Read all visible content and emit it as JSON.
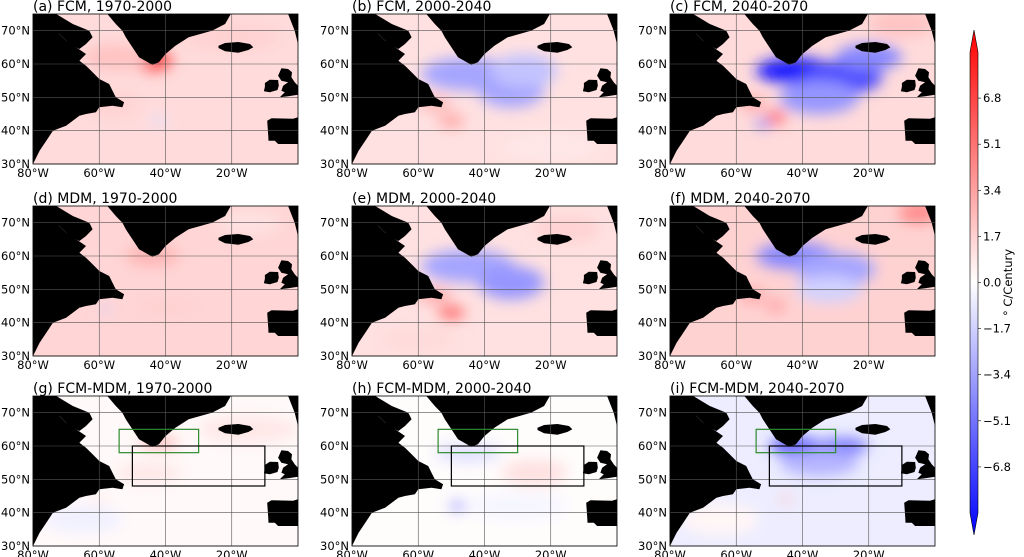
{
  "chart_data": {
    "type": "heatmap",
    "layout": "3x3 grid of maps",
    "colorbar": {
      "label": "$^\\circ$C/Century",
      "label_display": "° C/Century",
      "ticks": [
        6.8,
        5.1,
        3.4,
        1.7,
        0.0,
        -1.7,
        -3.4,
        -5.1,
        -6.8
      ],
      "tick_labels": [
        "6.8",
        "5.1",
        "3.4",
        "1.7",
        "0.0",
        "−1.7",
        "−3.4",
        "−5.1",
        "−6.8"
      ],
      "vmin": -8.5,
      "vmax": 8.5,
      "cmap": "bwr",
      "colors": {
        "low": "#0000ff",
        "mid": "#ffffff",
        "high": "#ff0000"
      },
      "extend": "both"
    },
    "xticks": [
      -80,
      -60,
      -40,
      -20
    ],
    "xtick_labels": [
      "80°W",
      "60°W",
      "40°W",
      "20°W"
    ],
    "yticks": [
      30,
      40,
      50,
      60,
      70
    ],
    "ytick_labels": [
      "30°N",
      "40°N",
      "50°N",
      "60°N",
      "70°N"
    ],
    "lon_range": [
      -80,
      0
    ],
    "lat_range": [
      30,
      75
    ],
    "land_color": "#000000",
    "grid": true,
    "boxes": [
      {
        "name": "green",
        "color": "#2e8b2e",
        "lon": [
          -54,
          -30
        ],
        "lat": [
          58,
          65
        ]
      },
      {
        "name": "black",
        "color": "#000000",
        "lon": [
          -50,
          -10
        ],
        "lat": [
          48,
          60
        ]
      }
    ],
    "panels": [
      {
        "title": "(a) FCM, 1970-2000",
        "base": 1.2,
        "boxes": false,
        "features": [
          {
            "lon": -44,
            "lat": 61,
            "rx": 6,
            "ry": 3,
            "v": 6
          },
          {
            "lon": -55,
            "lat": 62,
            "rx": 10,
            "ry": 4,
            "v": 2
          },
          {
            "lon": -20,
            "lat": 68,
            "rx": 15,
            "ry": 4,
            "v": 1.5
          },
          {
            "lon": -42,
            "lat": 43,
            "rx": 3,
            "ry": 1.2,
            "v": -1
          },
          {
            "lon": -56,
            "lat": 48,
            "rx": 8,
            "ry": 4,
            "v": 1.5
          }
        ]
      },
      {
        "title": "(b) FCM, 2000-2040",
        "base": 1.0,
        "boxes": false,
        "features": [
          {
            "lon": -45,
            "lat": 57,
            "rx": 14,
            "ry": 5,
            "v": -3
          },
          {
            "lon": -32,
            "lat": 52,
            "rx": 10,
            "ry": 5,
            "v": -3
          },
          {
            "lon": -28,
            "lat": 58,
            "rx": 10,
            "ry": 5,
            "v": -2
          },
          {
            "lon": -50,
            "lat": 43,
            "rx": 4,
            "ry": 2,
            "v": 3
          },
          {
            "lon": -55,
            "lat": 48,
            "rx": 5,
            "ry": 2,
            "v": 2.5
          },
          {
            "lon": -20,
            "lat": 35,
            "rx": 15,
            "ry": 4,
            "v": 0.8
          }
        ]
      },
      {
        "title": "(c) FCM, 2040-2070",
        "base": 1.2,
        "boxes": false,
        "features": [
          {
            "lon": -42,
            "lat": 58,
            "rx": 12,
            "ry": 4,
            "v": -7.5
          },
          {
            "lon": -28,
            "lat": 56,
            "rx": 12,
            "ry": 5,
            "v": -6
          },
          {
            "lon": -35,
            "lat": 50,
            "rx": 12,
            "ry": 5,
            "v": -3.5
          },
          {
            "lon": -20,
            "lat": 62,
            "rx": 10,
            "ry": 4,
            "v": -4
          },
          {
            "lon": -48,
            "lat": 44,
            "rx": 3,
            "ry": 1.8,
            "v": 5
          },
          {
            "lon": -55,
            "lat": 48,
            "rx": 4,
            "ry": 2,
            "v": 3
          },
          {
            "lon": -52,
            "lat": 42,
            "rx": 2.5,
            "ry": 1.2,
            "v": -4
          },
          {
            "lon": -10,
            "lat": 72,
            "rx": 10,
            "ry": 4,
            "v": 2
          }
        ]
      },
      {
        "title": "(d) MDM, 1970-2000",
        "base": 1.4,
        "boxes": false,
        "features": [
          {
            "lon": -44,
            "lat": 60,
            "rx": 8,
            "ry": 3,
            "v": 2.5
          },
          {
            "lon": -40,
            "lat": 45,
            "rx": 10,
            "ry": 3,
            "v": 1.5
          },
          {
            "lon": -58,
            "lat": 44,
            "rx": 2,
            "ry": 1,
            "v": -1.5
          },
          {
            "lon": -15,
            "lat": 70,
            "rx": 10,
            "ry": 4,
            "v": 1
          }
        ]
      },
      {
        "title": "(e) MDM, 2000-2040",
        "base": 1.0,
        "boxes": false,
        "features": [
          {
            "lon": -45,
            "lat": 57,
            "rx": 14,
            "ry": 5,
            "v": -3
          },
          {
            "lon": -32,
            "lat": 52,
            "rx": 10,
            "ry": 5,
            "v": -3.5
          },
          {
            "lon": -50,
            "lat": 43,
            "rx": 4,
            "ry": 2,
            "v": 5
          },
          {
            "lon": -55,
            "lat": 48,
            "rx": 5,
            "ry": 2,
            "v": 3
          },
          {
            "lon": -15,
            "lat": 68,
            "rx": 10,
            "ry": 4,
            "v": 1.5
          },
          {
            "lon": -60,
            "lat": 35,
            "rx": 12,
            "ry": 4,
            "v": 1.2
          }
        ]
      },
      {
        "title": "(f) MDM, 2040-2070",
        "base": 1.5,
        "boxes": false,
        "features": [
          {
            "lon": -42,
            "lat": 60,
            "rx": 12,
            "ry": 4,
            "v": -4
          },
          {
            "lon": -30,
            "lat": 56,
            "rx": 12,
            "ry": 5,
            "v": -3
          },
          {
            "lon": -32,
            "lat": 50,
            "rx": 10,
            "ry": 4,
            "v": -1.5
          },
          {
            "lon": -48,
            "lat": 45,
            "rx": 3,
            "ry": 2,
            "v": 3
          },
          {
            "lon": -55,
            "lat": 48,
            "rx": 4,
            "ry": 2,
            "v": 3
          },
          {
            "lon": -5,
            "lat": 73,
            "rx": 6,
            "ry": 3,
            "v": 4
          },
          {
            "lon": -65,
            "lat": 38,
            "rx": 12,
            "ry": 4,
            "v": 1.5
          }
        ]
      },
      {
        "title": "(g) FCM-MDM, 1970-2000",
        "base": 0.2,
        "boxes": true,
        "features": [
          {
            "lon": -42,
            "lat": 61,
            "rx": 6,
            "ry": 2,
            "v": 2.2
          },
          {
            "lon": -15,
            "lat": 65,
            "rx": 15,
            "ry": 4,
            "v": 0.8
          },
          {
            "lon": -45,
            "lat": 52,
            "rx": 10,
            "ry": 3,
            "v": 0.8
          },
          {
            "lon": -65,
            "lat": 38,
            "rx": 12,
            "ry": 4,
            "v": -0.5
          },
          {
            "lon": -60,
            "lat": 44,
            "rx": 1.5,
            "ry": 0.8,
            "v": 1.5
          }
        ]
      },
      {
        "title": "(h) FCM-MDM, 2000-2040",
        "base": 0.1,
        "boxes": true,
        "features": [
          {
            "lon": -48,
            "lat": 42,
            "rx": 2.5,
            "ry": 1.3,
            "v": -3.5
          },
          {
            "lon": -25,
            "lat": 52,
            "rx": 10,
            "ry": 4,
            "v": 1
          },
          {
            "lon": -45,
            "lat": 58,
            "rx": 10,
            "ry": 3,
            "v": -1
          },
          {
            "lon": -30,
            "lat": 42,
            "rx": 15,
            "ry": 4,
            "v": -0.3
          }
        ]
      },
      {
        "title": "(i) FCM-MDM, 2040-2070",
        "base": -0.6,
        "boxes": true,
        "features": [
          {
            "lon": -42,
            "lat": 60,
            "rx": 8,
            "ry": 2.5,
            "v": -6
          },
          {
            "lon": -28,
            "lat": 60,
            "rx": 8,
            "ry": 2.5,
            "v": -4.5
          },
          {
            "lon": -35,
            "lat": 55,
            "rx": 12,
            "ry": 4,
            "v": -2.5
          },
          {
            "lon": -45,
            "lat": 44,
            "rx": 2,
            "ry": 1,
            "v": 2
          },
          {
            "lon": -65,
            "lat": 38,
            "rx": 12,
            "ry": 5,
            "v": 0.3
          }
        ]
      }
    ]
  }
}
